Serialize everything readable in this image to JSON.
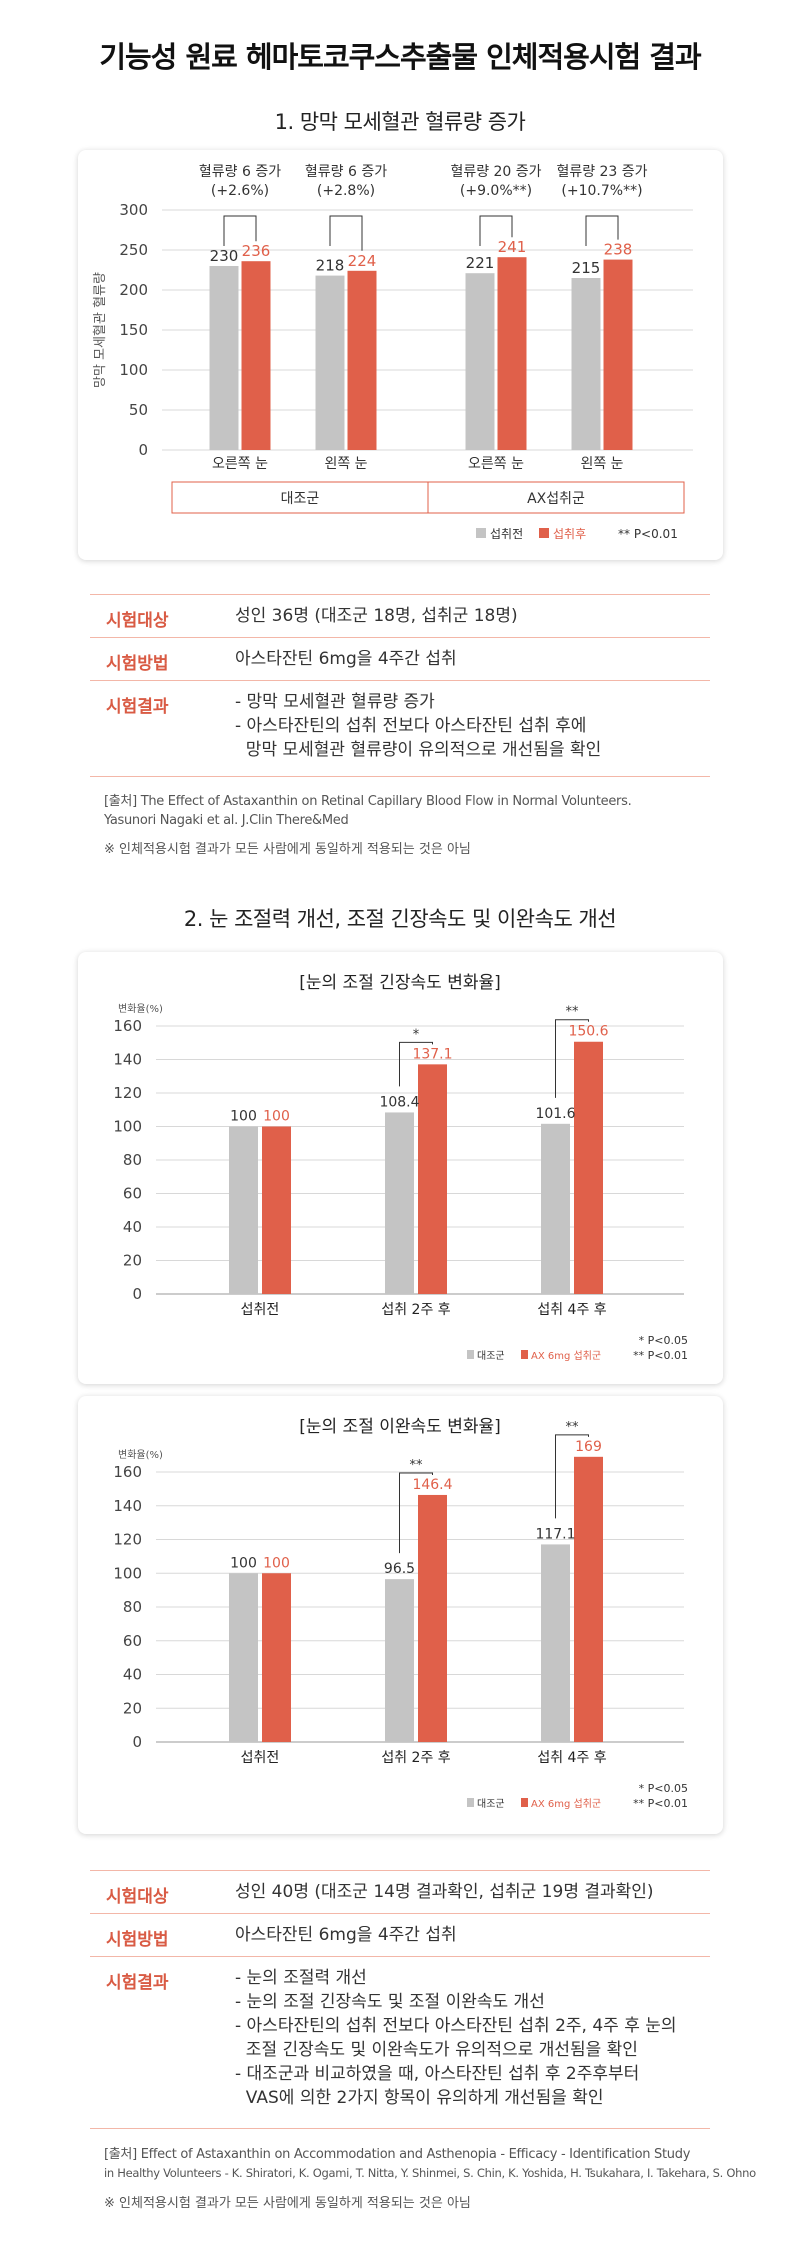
{
  "page_title": "기능성 원료 헤마토코쿠스추출물 인체적용시험 결과",
  "section1": {
    "title": "1. 망막 모세혈관 혈류량 증가",
    "chart_data": {
      "type": "bar",
      "ylabel": "망막 모세혈관 혈류량",
      "ylim": [
        0,
        300
      ],
      "yticks": [
        "0",
        "50",
        "100",
        "150",
        "200",
        "250",
        "300"
      ],
      "categories": [
        "오른쪽 눈",
        "왼쪽 눈",
        "오른쪽 눈",
        "왼쪽 눈"
      ],
      "groups": [
        "대조군",
        "AX섭취군"
      ],
      "series": [
        {
          "name": "섭취전",
          "values": [
            230,
            218,
            221,
            215
          ],
          "labels": [
            "230",
            "218",
            "221",
            "215"
          ],
          "color": "#c4c4c4"
        },
        {
          "name": "섭취후",
          "values": [
            236,
            224,
            241,
            238
          ],
          "labels": [
            "236",
            "224",
            "241",
            "238"
          ],
          "color": "#e0604a"
        }
      ],
      "annotations": [
        {
          "line1": "혈류량 6 증가",
          "line2": "(+2.6%)"
        },
        {
          "line1": "혈류량 6 증가",
          "line2": "(+2.8%)"
        },
        {
          "line1": "혈류량 20 증가",
          "line2": "(+9.0%**)"
        },
        {
          "line1": "혈류량 23 증가",
          "line2": "(+10.7%**)"
        }
      ],
      "significance_note": "** P<0.01"
    },
    "info": [
      {
        "label": "시험대상",
        "lines": [
          "성인 36명 (대조군 18명, 섭취군 18명)"
        ]
      },
      {
        "label": "시험방법",
        "lines": [
          "아스타잔틴 6mg을 4주간 섭취"
        ]
      },
      {
        "label": "시험결과",
        "lines": [
          "- 망막 모세혈관 혈류량 증가",
          "- 아스타잔틴의 섭취 전보다 아스타잔틴 섭취 후에",
          "  망막 모세혈관 혈류량이 유의적으로 개선됨을 확인"
        ]
      }
    ],
    "source_lines": [
      "[출처] The Effect of Astaxanthin on Retinal Capillary Blood Flow in Normal Volunteers.",
      "Yasunori Nagaki et al. J.Clin There&Med"
    ],
    "note": "※ 인체적용시험 결과가 모든 사람에게 동일하게 적용되는 것은 아님"
  },
  "section2": {
    "title": "2. 눈 조절력 개선, 조절 긴장속도 및 이완속도 개선",
    "charts": [
      {
        "type": "bar",
        "title": "[눈의 조절 긴장속도 변화율]",
        "ylabel": "변화율(%)",
        "ylim": [
          0,
          160
        ],
        "yticks": [
          "0",
          "20",
          "40",
          "60",
          "80",
          "100",
          "120",
          "140",
          "160"
        ],
        "categories": [
          "섭취전",
          "섭취 2주 후",
          "섭취 4주 후"
        ],
        "series": [
          {
            "name": "대조군",
            "values": [
              100,
              108.4,
              101.6
            ],
            "labels": [
              "100",
              "108.4",
              "101.6"
            ],
            "color": "#c4c4c4"
          },
          {
            "name": "AX 6mg 섭취군",
            "values": [
              100,
              137.1,
              150.6
            ],
            "labels": [
              "100",
              "137.1",
              "150.6"
            ],
            "color": "#e0604a"
          }
        ],
        "significance": [
          "",
          "*",
          "**"
        ],
        "notes": [
          "* P<0.05",
          "** P<0.01"
        ]
      },
      {
        "type": "bar",
        "title": "[눈의 조절 이완속도 변화율]",
        "ylabel": "변화율(%)",
        "ylim": [
          0,
          160
        ],
        "yticks": [
          "0",
          "20",
          "40",
          "60",
          "80",
          "100",
          "120",
          "140",
          "160"
        ],
        "categories": [
          "섭취전",
          "섭취 2주 후",
          "섭취 4주 후"
        ],
        "series": [
          {
            "name": "대조군",
            "values": [
              100,
              96.5,
              117.1
            ],
            "labels": [
              "100",
              "96.5",
              "117.1"
            ],
            "color": "#c4c4c4"
          },
          {
            "name": "AX 6mg 섭취군",
            "values": [
              100,
              146.4,
              169
            ],
            "labels": [
              "100",
              "146.4",
              "169"
            ],
            "color": "#e0604a"
          }
        ],
        "significance": [
          "",
          "**",
          "**"
        ],
        "notes": [
          "* P<0.05",
          "** P<0.01"
        ]
      }
    ],
    "info": [
      {
        "label": "시험대상",
        "lines": [
          "성인 40명 (대조군 14명 결과확인, 섭취군 19명 결과확인)"
        ]
      },
      {
        "label": "시험방법",
        "lines": [
          "아스타잔틴 6mg을 4주간 섭취"
        ]
      },
      {
        "label": "시험결과",
        "lines": [
          "- 눈의 조절력 개선",
          "- 눈의 조절 긴장속도 및 조절 이완속도 개선",
          "- 아스타잔틴의 섭취 전보다 아스타잔틴 섭취 2주, 4주 후 눈의",
          "  조절 긴장속도 및 이완속도가 유의적으로 개선됨을 확인",
          "- 대조군과 비교하였을 때, 아스타잔틴 섭취 후 2주후부터",
          "  VAS에 의한 2가지 항목이 유의하게 개선됨을 확인"
        ]
      }
    ],
    "source_lines": [
      "[출처] Effect of Astaxanthin on Accommodation and Asthenopia - Efficacy - Identification Study",
      "in Healthy Volunteers - K. Shiratori, K. Ogami, T. Nitta, Y. Shinmei, S. Chin, K. Yoshida, H. Tsukahara, I. Takehara, S. Ohno"
    ],
    "note": "※ 인체적용시험 결과가 모든 사람에게 동일하게 적용되는 것은 아님"
  }
}
